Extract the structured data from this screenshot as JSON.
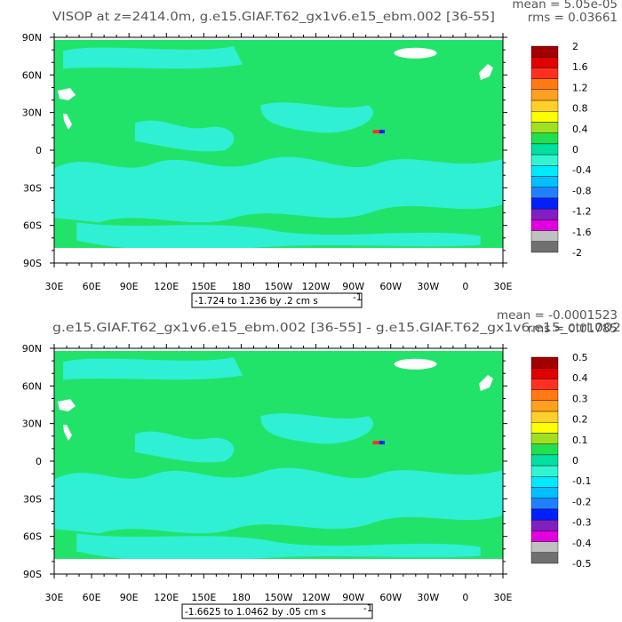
{
  "chart_data": [
    {
      "type": "heatmap",
      "title": "VISOP at z=2414.0m, g.e15.GIAF.T62_gx1v6.e15_ebm.002 [36-55]",
      "stats": {
        "mean": "mean = 5.05e-05",
        "rms": "rms = 0.03661"
      },
      "range_label": "-1.724 to 1.236 by .2 cm s",
      "range_unit_sup": "-1",
      "x_ticks": [
        "30E",
        "60E",
        "90E",
        "120E",
        "150E",
        "180",
        "150W",
        "120W",
        "90W",
        "60W",
        "30W",
        "0",
        "30E"
      ],
      "y_ticks": [
        "90N",
        "60N",
        "30N",
        "0",
        "30S",
        "60S",
        "90S"
      ],
      "colorbar": {
        "labels": [
          "2",
          "1.6",
          "1.2",
          "0.8",
          "0.4",
          "0",
          "-0.4",
          "-0.8",
          "-1.2",
          "-1.6",
          "-2"
        ],
        "colors": [
          "#a00000",
          "#e00000",
          "#ff3020",
          "#ff7a10",
          "#ffa020",
          "#ffd02a",
          "#ffff00",
          "#a0e020",
          "#20e050",
          "#00e0a0",
          "#30f5d0",
          "#00eaff",
          "#00c0ff",
          "#2080ff",
          "#0020ff",
          "#8020c0",
          "#e000e0",
          "#c0c0c0",
          "#707070"
        ]
      },
      "field": {
        "background": "#22e36a",
        "ocean_band": "#2ff0d4",
        "no_data": "#ffffff"
      }
    },
    {
      "type": "heatmap",
      "title": "g.e15.GIAF.T62_gx1v6.e15_ebm.002 [36-55] - g.e15.GIAF.T62_gx1v6.e15_ctrl.002",
      "stats": {
        "mean": "mean = -0.0001523",
        "rms": "rms = 0.01785"
      },
      "range_label": "-1.6625 to 1.0462 by .05 cm s",
      "range_unit_sup": "-1",
      "x_ticks": [
        "30E",
        "60E",
        "90E",
        "120E",
        "150E",
        "180",
        "150W",
        "120W",
        "90W",
        "60W",
        "30W",
        "0",
        "30E"
      ],
      "y_ticks": [
        "90N",
        "60N",
        "30N",
        "0",
        "30S",
        "60S",
        "90S"
      ],
      "colorbar": {
        "labels": [
          "0.5",
          "0.4",
          "0.3",
          "0.2",
          "0.1",
          "0",
          "-0.1",
          "-0.2",
          "-0.3",
          "-0.4",
          "-0.5"
        ],
        "colors": [
          "#a00000",
          "#e00000",
          "#ff3020",
          "#ff7a10",
          "#ffa020",
          "#ffd02a",
          "#ffff00",
          "#a0e020",
          "#20e050",
          "#00e0a0",
          "#30f5d0",
          "#00eaff",
          "#00c0ff",
          "#2080ff",
          "#0020ff",
          "#8020c0",
          "#e000e0",
          "#c0c0c0",
          "#707070"
        ]
      },
      "field": {
        "background": "#22e36a",
        "ocean_band": "#2ff0d4",
        "no_data": "#ffffff"
      }
    }
  ]
}
